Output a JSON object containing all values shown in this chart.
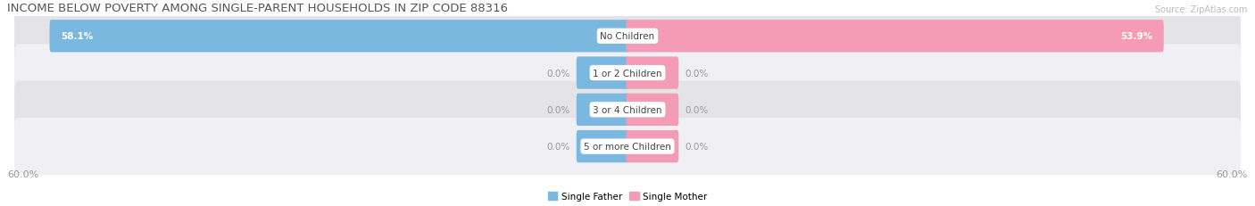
{
  "title": "INCOME BELOW POVERTY AMONG SINGLE-PARENT HOUSEHOLDS IN ZIP CODE 88316",
  "source": "Source: ZipAtlas.com",
  "categories": [
    "No Children",
    "1 or 2 Children",
    "3 or 4 Children",
    "5 or more Children"
  ],
  "single_father": [
    58.1,
    0.0,
    0.0,
    0.0
  ],
  "single_mother": [
    53.9,
    0.0,
    0.0,
    0.0
  ],
  "max_val": 60.0,
  "father_color": "#7ab8e0",
  "mother_color": "#f49bb5",
  "row_bg_colors": [
    "#e4e4e8",
    "#f0f0f4",
    "#e4e4e8",
    "#f0f0f4"
  ],
  "stub_size": 5.0,
  "axis_label_left": "60.0%",
  "axis_label_right": "60.0%",
  "label_father": "Single Father",
  "label_mother": "Single Mother",
  "title_fontsize": 9.5,
  "source_fontsize": 7.0,
  "bar_label_fontsize": 7.5,
  "cat_label_fontsize": 7.5,
  "axis_label_fontsize": 8
}
